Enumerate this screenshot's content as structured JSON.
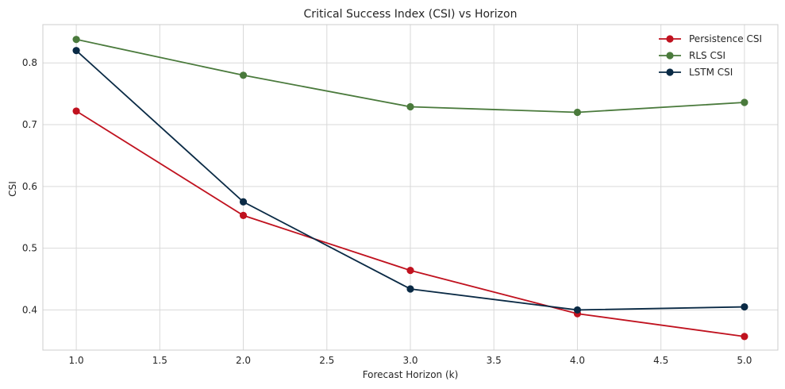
{
  "chart_data": {
    "type": "line",
    "title": "Critical Success Index (CSI) vs Horizon",
    "xlabel": "Forecast Horizon (k)",
    "ylabel": "CSI",
    "x": [
      1.0,
      2.0,
      3.0,
      4.0,
      5.0
    ],
    "xlim": [
      0.8,
      5.2
    ],
    "ylim": [
      0.335,
      0.862
    ],
    "xticks": [
      "1.0",
      "1.5",
      "2.0",
      "2.5",
      "3.0",
      "3.5",
      "4.0",
      "4.5",
      "5.0"
    ],
    "yticks": [
      "0.4",
      "0.5",
      "0.6",
      "0.7",
      "0.8"
    ],
    "grid": true,
    "legend_position": "top-right",
    "series": [
      {
        "name": "Persistence CSI",
        "color": "#c0121f",
        "values": [
          0.722,
          0.553,
          0.464,
          0.394,
          0.357
        ]
      },
      {
        "name": "RLS CSI",
        "color": "#4a7a3c",
        "values": [
          0.838,
          0.78,
          0.729,
          0.72,
          0.736
        ]
      },
      {
        "name": "LSTM CSI",
        "color": "#0a2a45",
        "values": [
          0.82,
          0.575,
          0.434,
          0.4,
          0.405
        ]
      }
    ]
  }
}
